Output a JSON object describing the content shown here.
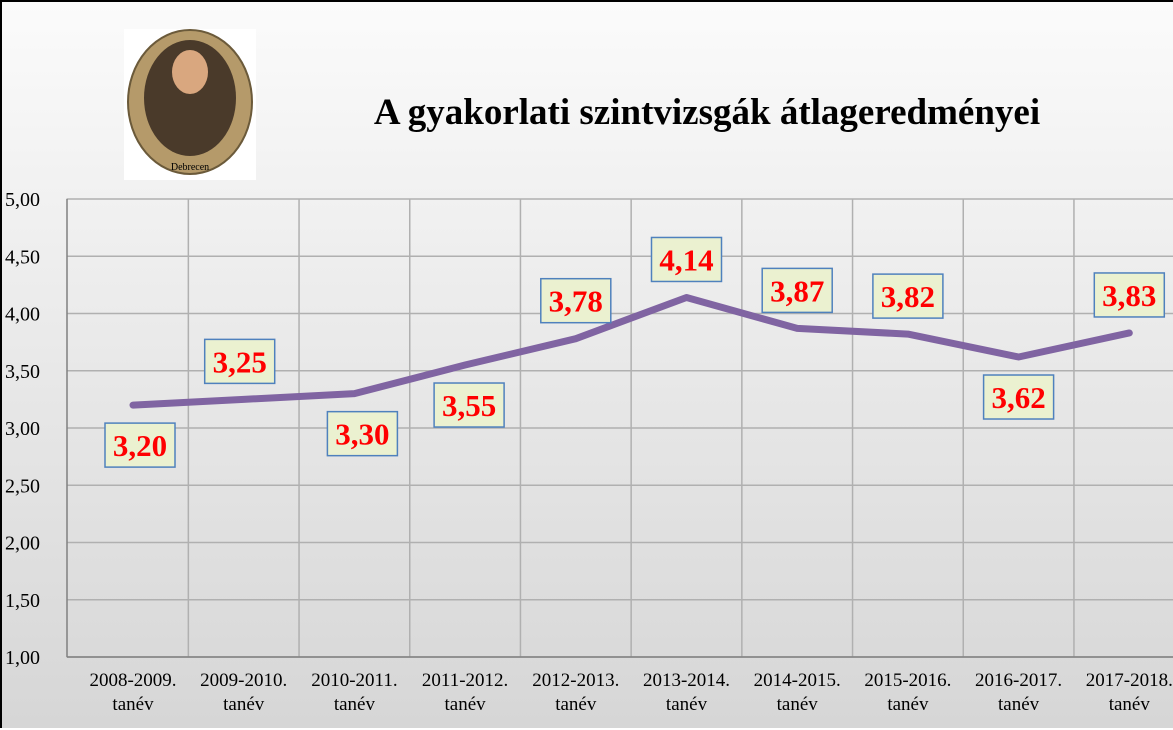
{
  "chart_data": {
    "type": "line",
    "title": "A gyakorlati szintvizsgák átlageredményei",
    "logo_caption": "Debrecen",
    "categories": [
      "2008-2009. tanév",
      "2009-2010. tanév",
      "2010-2011. tanév",
      "2011-2012. tanév",
      "2012-2013. tanév",
      "2013-2014. tanév",
      "2014-2015. tanév",
      "2015-2016. tanév",
      "2016-2017. tanév",
      "2017-2018. tanév"
    ],
    "values": [
      3.2,
      3.25,
      3.3,
      3.55,
      3.78,
      4.14,
      3.87,
      3.82,
      3.62,
      3.83
    ],
    "value_labels": [
      "3,20",
      "3,25",
      "3,30",
      "3,55",
      "3,78",
      "4,14",
      "3,87",
      "3,82",
      "3,62",
      "3,83"
    ],
    "color": "#8064a2",
    "ylim": [
      1,
      5
    ],
    "yticks": [
      {
        "value": 1,
        "label": "1,00"
      },
      {
        "value": 1.5,
        "label": "1,50"
      },
      {
        "value": 2,
        "label": "2,00"
      },
      {
        "value": 2.5,
        "label": "2,50"
      },
      {
        "value": 3,
        "label": "3,00"
      },
      {
        "value": 3.5,
        "label": "3,50"
      },
      {
        "value": 4,
        "label": "4,00"
      },
      {
        "value": 4.5,
        "label": "4,50"
      },
      {
        "value": 5,
        "label": "5,00"
      }
    ],
    "grid": true
  }
}
